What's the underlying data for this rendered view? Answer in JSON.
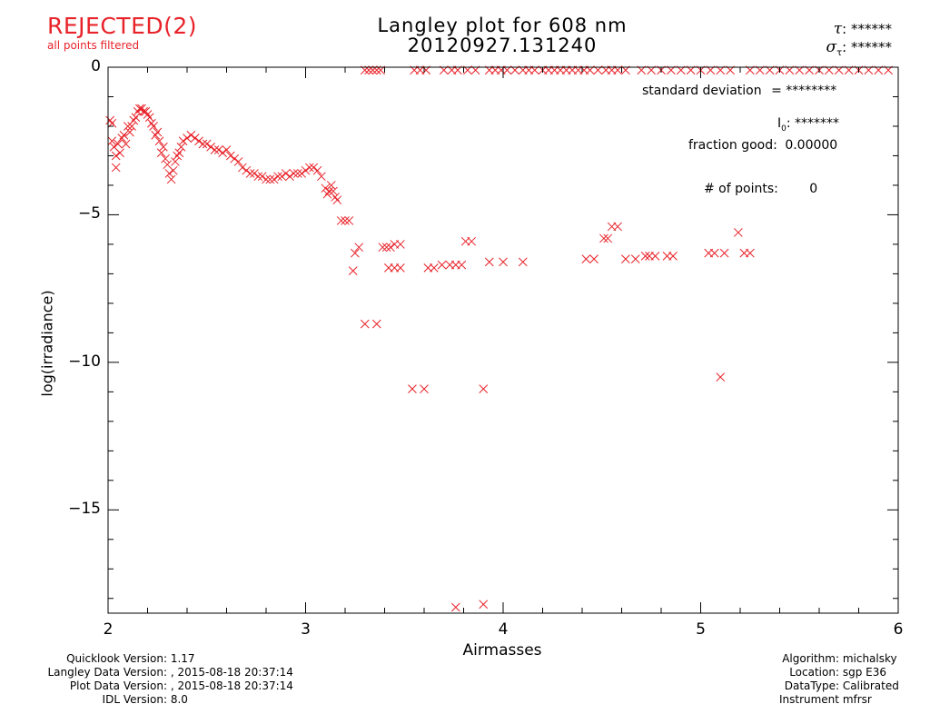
{
  "status": {
    "label": "REJECTED(2)",
    "sublabel": "all points filtered",
    "color": "#e8232a"
  },
  "title": {
    "line1": "Langley plot for 608 nm",
    "line2": "20120927.131240"
  },
  "tau": {
    "symbol": "τ",
    "value": ": ******"
  },
  "sigma_tau": {
    "symbol": "σ",
    "sub": "τ",
    "value": ": ******"
  },
  "stats": {
    "std_dev_label": "standard deviation",
    "std_dev_value": "= ********",
    "i0_label": "I",
    "i0_sub": "0",
    "i0_value": ": *******",
    "fraction_good_label": "fraction good:",
    "fraction_good_value": "0.00000",
    "num_points_label": "# of points:",
    "num_points_value": "0"
  },
  "footer_left": [
    {
      "label": "Quicklook Version:",
      "value": "1.17"
    },
    {
      "label": "Langley Data Version:",
      "value": ", 2015-08-18 20:37:14"
    },
    {
      "label": "Plot Data Version:",
      "value": ", 2015-08-18 20:37:14"
    },
    {
      "label": "IDL Version:",
      "value": "8.0"
    }
  ],
  "footer_right": [
    {
      "label": "Algorithm:",
      "value": "michalsky"
    },
    {
      "label": "Location:",
      "value": "sgp E36"
    },
    {
      "label": "DataType:",
      "value": "Calibrated"
    },
    {
      "label": "Instrument",
      "value": "mfrsr"
    }
  ],
  "chart_data": {
    "type": "scatter",
    "xlabel": "Airmasses",
    "ylabel": "log(irradiance)",
    "xlim": [
      2,
      6
    ],
    "ylim": [
      -18.5,
      0
    ],
    "xticks": [
      2,
      3,
      4,
      5,
      6
    ],
    "yticks": [
      0,
      -5,
      -10,
      -15
    ],
    "marker": "x",
    "marker_color": "#e8232a",
    "points": [
      [
        2.01,
        -1.8
      ],
      [
        2.02,
        -1.9
      ],
      [
        2.02,
        -2.5
      ],
      [
        2.03,
        -2.7
      ],
      [
        2.04,
        -3.0
      ],
      [
        2.04,
        -3.4
      ],
      [
        2.05,
        -2.6
      ],
      [
        2.06,
        -2.9
      ],
      [
        2.07,
        -2.4
      ],
      [
        2.08,
        -2.3
      ],
      [
        2.09,
        -2.6
      ],
      [
        2.1,
        -2.0
      ],
      [
        2.11,
        -2.2
      ],
      [
        2.12,
        -2.0
      ],
      [
        2.13,
        -1.8
      ],
      [
        2.14,
        -1.7
      ],
      [
        2.15,
        -1.5
      ],
      [
        2.16,
        -1.4
      ],
      [
        2.17,
        -1.4
      ],
      [
        2.18,
        -1.5
      ],
      [
        2.19,
        -1.5
      ],
      [
        2.2,
        -1.6
      ],
      [
        2.21,
        -1.7
      ],
      [
        2.22,
        -1.9
      ],
      [
        2.23,
        -2.0
      ],
      [
        2.24,
        -2.3
      ],
      [
        2.25,
        -2.2
      ],
      [
        2.26,
        -2.5
      ],
      [
        2.27,
        -2.9
      ],
      [
        2.28,
        -2.7
      ],
      [
        2.29,
        -3.1
      ],
      [
        2.3,
        -3.3
      ],
      [
        2.31,
        -3.6
      ],
      [
        2.32,
        -3.8
      ],
      [
        2.33,
        -3.5
      ],
      [
        2.34,
        -3.2
      ],
      [
        2.35,
        -3.0
      ],
      [
        2.36,
        -2.9
      ],
      [
        2.37,
        -2.7
      ],
      [
        2.38,
        -2.5
      ],
      [
        2.4,
        -2.4
      ],
      [
        2.42,
        -2.3
      ],
      [
        2.44,
        -2.4
      ],
      [
        2.46,
        -2.5
      ],
      [
        2.48,
        -2.6
      ],
      [
        2.5,
        -2.6
      ],
      [
        2.52,
        -2.7
      ],
      [
        2.54,
        -2.8
      ],
      [
        2.56,
        -2.8
      ],
      [
        2.58,
        -2.9
      ],
      [
        2.6,
        -2.8
      ],
      [
        2.62,
        -3.0
      ],
      [
        2.64,
        -3.1
      ],
      [
        2.66,
        -3.2
      ],
      [
        2.68,
        -3.4
      ],
      [
        2.7,
        -3.5
      ],
      [
        2.72,
        -3.6
      ],
      [
        2.74,
        -3.6
      ],
      [
        2.76,
        -3.7
      ],
      [
        2.78,
        -3.7
      ],
      [
        2.8,
        -3.8
      ],
      [
        2.82,
        -3.8
      ],
      [
        2.84,
        -3.8
      ],
      [
        2.86,
        -3.7
      ],
      [
        2.88,
        -3.7
      ],
      [
        2.9,
        -3.6
      ],
      [
        2.92,
        -3.7
      ],
      [
        2.94,
        -3.6
      ],
      [
        2.96,
        -3.6
      ],
      [
        2.98,
        -3.6
      ],
      [
        3.0,
        -3.5
      ],
      [
        3.02,
        -3.4
      ],
      [
        3.04,
        -3.4
      ],
      [
        3.06,
        -3.5
      ],
      [
        3.08,
        -3.7
      ],
      [
        3.1,
        -4.1
      ],
      [
        3.11,
        -4.3
      ],
      [
        3.12,
        -4.2
      ],
      [
        3.13,
        -4.0
      ],
      [
        3.14,
        -4.2
      ],
      [
        3.15,
        -4.4
      ],
      [
        3.16,
        -4.5
      ],
      [
        3.18,
        -5.2
      ],
      [
        3.2,
        -5.2
      ],
      [
        3.22,
        -5.2
      ],
      [
        3.24,
        -6.9
      ],
      [
        3.25,
        -6.3
      ],
      [
        3.27,
        -6.1
      ],
      [
        3.3,
        -8.7
      ],
      [
        3.36,
        -8.7
      ],
      [
        3.39,
        -6.1
      ],
      [
        3.41,
        -6.1
      ],
      [
        3.43,
        -6.1
      ],
      [
        3.45,
        -6.0
      ],
      [
        3.48,
        -6.0
      ],
      [
        3.42,
        -6.8
      ],
      [
        3.45,
        -6.8
      ],
      [
        3.48,
        -6.8
      ],
      [
        3.54,
        -10.9
      ],
      [
        3.6,
        -10.9
      ],
      [
        3.62,
        -6.8
      ],
      [
        3.65,
        -6.8
      ],
      [
        3.69,
        -6.7
      ],
      [
        3.73,
        -6.7
      ],
      [
        3.76,
        -6.7
      ],
      [
        3.79,
        -6.7
      ],
      [
        3.81,
        -5.9
      ],
      [
        3.84,
        -5.9
      ],
      [
        3.9,
        -10.9
      ],
      [
        3.93,
        -6.6
      ],
      [
        4.0,
        -6.6
      ],
      [
        4.1,
        -6.6
      ],
      [
        4.42,
        -6.5
      ],
      [
        4.46,
        -6.5
      ],
      [
        4.51,
        -5.8
      ],
      [
        4.53,
        -5.8
      ],
      [
        4.55,
        -5.4
      ],
      [
        4.58,
        -5.4
      ],
      [
        4.62,
        -6.5
      ],
      [
        4.67,
        -6.5
      ],
      [
        4.72,
        -6.4
      ],
      [
        4.74,
        -6.4
      ],
      [
        4.77,
        -6.4
      ],
      [
        4.83,
        -6.4
      ],
      [
        4.86,
        -6.4
      ],
      [
        5.04,
        -6.3
      ],
      [
        5.07,
        -6.3
      ],
      [
        5.12,
        -6.3
      ],
      [
        5.19,
        -5.6
      ],
      [
        5.22,
        -6.3
      ],
      [
        5.25,
        -6.3
      ],
      [
        5.1,
        -10.5
      ],
      [
        3.76,
        -18.3
      ],
      [
        3.9,
        -18.2
      ],
      [
        3.3,
        -0.1
      ],
      [
        3.32,
        -0.1
      ],
      [
        3.34,
        -0.1
      ],
      [
        3.36,
        -0.1
      ],
      [
        3.38,
        -0.1
      ],
      [
        3.55,
        -0.1
      ],
      [
        3.58,
        -0.1
      ],
      [
        3.61,
        -0.1
      ],
      [
        3.7,
        -0.1
      ],
      [
        3.74,
        -0.1
      ],
      [
        3.77,
        -0.1
      ],
      [
        3.82,
        -0.1
      ],
      [
        3.86,
        -0.1
      ],
      [
        3.93,
        -0.1
      ],
      [
        3.96,
        -0.1
      ],
      [
        3.99,
        -0.1
      ],
      [
        4.02,
        -0.1
      ],
      [
        4.06,
        -0.1
      ],
      [
        4.1,
        -0.1
      ],
      [
        4.13,
        -0.1
      ],
      [
        4.16,
        -0.1
      ],
      [
        4.2,
        -0.1
      ],
      [
        4.23,
        -0.1
      ],
      [
        4.26,
        -0.1
      ],
      [
        4.29,
        -0.1
      ],
      [
        4.32,
        -0.1
      ],
      [
        4.35,
        -0.1
      ],
      [
        4.38,
        -0.1
      ],
      [
        4.41,
        -0.1
      ],
      [
        4.44,
        -0.1
      ],
      [
        4.48,
        -0.1
      ],
      [
        4.52,
        -0.1
      ],
      [
        4.55,
        -0.1
      ],
      [
        4.58,
        -0.1
      ],
      [
        4.62,
        -0.1
      ],
      [
        4.7,
        -0.1
      ],
      [
        4.75,
        -0.1
      ],
      [
        4.8,
        -0.1
      ],
      [
        4.85,
        -0.1
      ],
      [
        4.9,
        -0.1
      ],
      [
        4.95,
        -0.1
      ],
      [
        5.0,
        -0.1
      ],
      [
        5.05,
        -0.1
      ],
      [
        5.1,
        -0.1
      ],
      [
        5.15,
        -0.1
      ],
      [
        5.25,
        -0.1
      ],
      [
        5.3,
        -0.1
      ],
      [
        5.35,
        -0.1
      ],
      [
        5.4,
        -0.1
      ],
      [
        5.45,
        -0.1
      ],
      [
        5.5,
        -0.1
      ],
      [
        5.55,
        -0.1
      ],
      [
        5.6,
        -0.1
      ],
      [
        5.65,
        -0.1
      ],
      [
        5.7,
        -0.1
      ],
      [
        5.75,
        -0.1
      ],
      [
        5.8,
        -0.1
      ],
      [
        5.85,
        -0.1
      ],
      [
        5.9,
        -0.1
      ],
      [
        5.95,
        -0.1
      ]
    ]
  }
}
